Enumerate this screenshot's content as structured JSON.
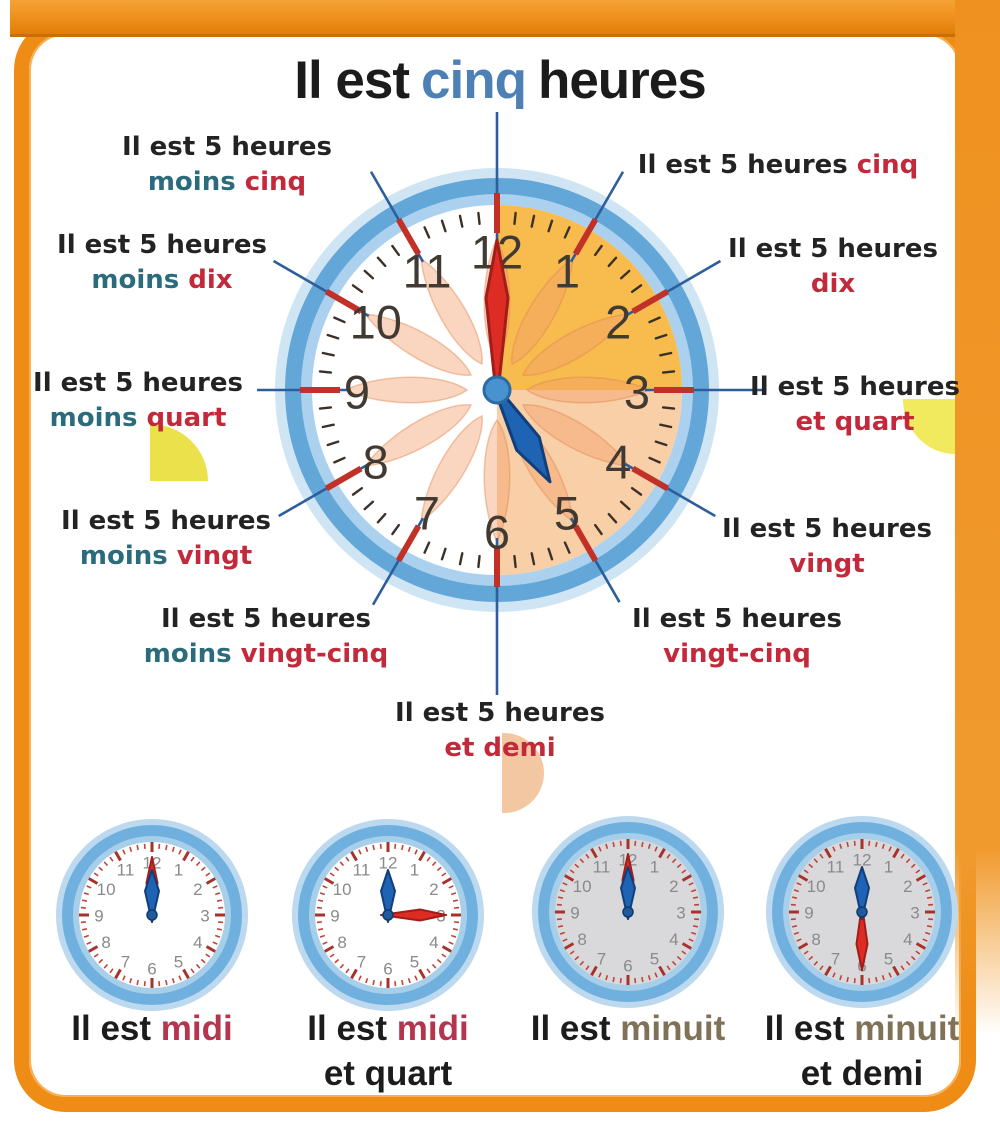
{
  "poster": {
    "title": {
      "prefix": "Il est",
      "highlight": "cinq",
      "suffix": "heures",
      "highlight_color": "#4d80b4"
    }
  },
  "big_clock": {
    "time_shown": "5:00",
    "numbers": [
      "12",
      "1",
      "2",
      "3",
      "4",
      "5",
      "6",
      "7",
      "8",
      "9",
      "10",
      "11"
    ],
    "minute_hand_angle": 0,
    "hour_hand_angle": 150,
    "colors": {
      "ring_blue": "#63a7d9",
      "ring_light": "#abd1ee",
      "quadrant_first": "#f7bb4e",
      "quadrant_second": "#f8cfa7",
      "minute_hand": "#dd2c23",
      "hour_hand": "#1e63b4",
      "tick_red": "#c23127",
      "connector_blue": "#2e5d9b",
      "teal_text": "#2a6b7c",
      "red_text": "#c2293a"
    },
    "labels": [
      {
        "name": "cinq",
        "black": "Il est 5 heures",
        "teal": "",
        "red": "cinq"
      },
      {
        "name": "dix",
        "black": "Il est 5 heures",
        "teal": "",
        "red": "dix"
      },
      {
        "name": "et-quart",
        "black": "Il est 5 heures",
        "teal": "",
        "red": "et quart"
      },
      {
        "name": "vingt",
        "black": "Il est 5 heures",
        "teal": "",
        "red": "vingt"
      },
      {
        "name": "vingt-cinq",
        "black": "Il est 5 heures",
        "teal": "",
        "red": "vingt-cinq"
      },
      {
        "name": "et-demi",
        "black": "Il est 5 heures",
        "teal": "",
        "red": "et demi"
      },
      {
        "name": "moins-vingt-cinq",
        "black": "Il est 5 heures",
        "teal": "moins",
        "red": "vingt-cinq"
      },
      {
        "name": "moins-vingt",
        "black": "Il est 5 heures",
        "teal": "moins",
        "red": "vingt"
      },
      {
        "name": "moins-quart",
        "black": "Il est 5 heures",
        "teal": "moins",
        "red": "quart"
      },
      {
        "name": "moins-dix",
        "black": "Il est 5 heures",
        "teal": "moins",
        "red": "dix"
      },
      {
        "name": "moins-cinq",
        "black": "Il est 5 heures",
        "teal": "moins",
        "red": "cinq"
      }
    ]
  },
  "mini_clocks": [
    {
      "name": "midi",
      "time_shown": "12:00",
      "caption_black": "Il est",
      "caption_word": "midi",
      "caption_word_color": "#b5344e",
      "caption_line2": "",
      "face_color": "#ffffff",
      "hour_angle": 0,
      "minute_angle": 0
    },
    {
      "name": "midi-et-quart",
      "time_shown": "12:15",
      "caption_black": "Il est",
      "caption_word": "midi",
      "caption_word_color": "#b5344e",
      "caption_line2": "et quart",
      "face_color": "#ffffff",
      "hour_angle": 0,
      "minute_angle": 90
    },
    {
      "name": "minuit",
      "time_shown": "12:00",
      "caption_black": "Il est",
      "caption_word": "minuit",
      "caption_word_color": "#7f7257",
      "caption_line2": "",
      "face_color": "#d9d9dc",
      "hour_angle": 0,
      "minute_angle": 0
    },
    {
      "name": "minuit-et-demi",
      "time_shown": "12:30",
      "caption_black": "Il est",
      "caption_word": "minuit",
      "caption_word_color": "#7f7257",
      "caption_line2": "et demi",
      "face_color": "#d9d9dc",
      "hour_angle": 0,
      "minute_angle": 180
    }
  ]
}
